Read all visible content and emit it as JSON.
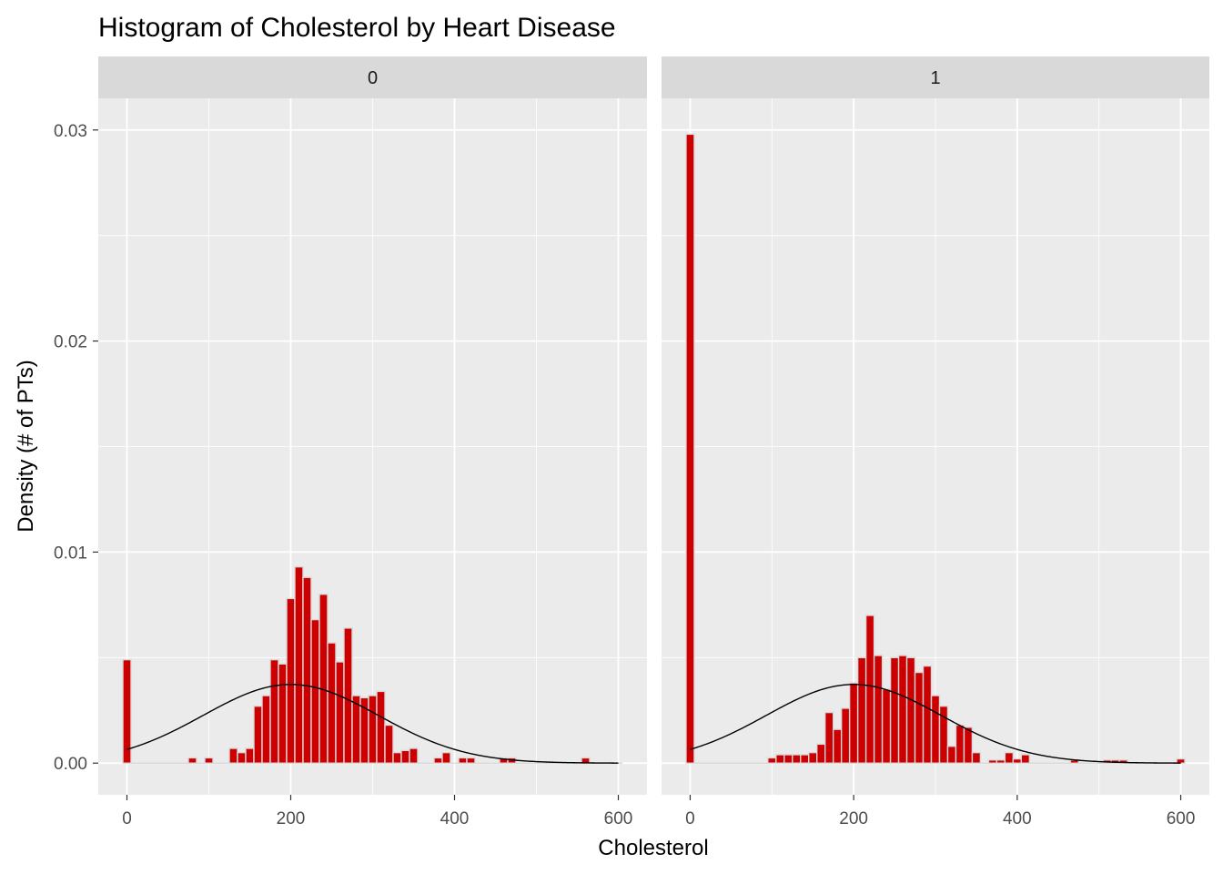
{
  "chart_data": {
    "type": "bar",
    "title": "Histogram of Cholesterol by Heart Disease",
    "xlabel": "Cholesterol",
    "ylabel": "Density (# of PTs)",
    "xlim": [
      -35,
      635
    ],
    "ylim": [
      -0.0015,
      0.0315
    ],
    "x_ticks": [
      0,
      200,
      400,
      600
    ],
    "x_tick_labels": [
      "0",
      "200",
      "400",
      "600"
    ],
    "y_ticks": [
      0,
      0.01,
      0.02,
      0.03
    ],
    "y_tick_labels": [
      "0.00",
      "0.01",
      "0.02",
      "0.03"
    ],
    "grid": true,
    "legend": "none",
    "bin_width": 10,
    "colors": {
      "bar_fill": "#cc0000",
      "bar_outline": "#d9d9d9",
      "curve": "#000000",
      "panel_bg": "#ebebeb",
      "strip_bg": "#d9d9d9",
      "grid": "#ffffff"
    },
    "panels": [
      {
        "label": "0",
        "bins": [
          [
            0,
            0.0049
          ],
          [
            80,
            0.00025
          ],
          [
            100,
            0.00025
          ],
          [
            130,
            0.0007
          ],
          [
            140,
            0.0005
          ],
          [
            150,
            0.0007
          ],
          [
            160,
            0.0027
          ],
          [
            170,
            0.0032
          ],
          [
            180,
            0.0049
          ],
          [
            190,
            0.0047
          ],
          [
            200,
            0.0078
          ],
          [
            210,
            0.0093
          ],
          [
            220,
            0.0088
          ],
          [
            230,
            0.0068
          ],
          [
            240,
            0.008
          ],
          [
            250,
            0.0057
          ],
          [
            260,
            0.0048
          ],
          [
            270,
            0.0064
          ],
          [
            280,
            0.0032
          ],
          [
            290,
            0.0031
          ],
          [
            300,
            0.0032
          ],
          [
            310,
            0.0034
          ],
          [
            320,
            0.0018
          ],
          [
            330,
            0.0005
          ],
          [
            340,
            0.0006
          ],
          [
            350,
            0.0007
          ],
          [
            380,
            0.00025
          ],
          [
            390,
            0.0005
          ],
          [
            410,
            0.00025
          ],
          [
            420,
            0.00025
          ],
          [
            460,
            0.00025
          ],
          [
            470,
            0.00025
          ],
          [
            560,
            0.00025
          ]
        ],
        "normal_fit": {
          "mean": 200,
          "sd": 107
        }
      },
      {
        "label": "1",
        "bins": [
          [
            0,
            0.0298
          ],
          [
            100,
            0.00025
          ],
          [
            110,
            0.0004
          ],
          [
            120,
            0.0004
          ],
          [
            130,
            0.0004
          ],
          [
            140,
            0.0004
          ],
          [
            150,
            0.0005
          ],
          [
            160,
            0.0009
          ],
          [
            170,
            0.0024
          ],
          [
            180,
            0.0016
          ],
          [
            190,
            0.0026
          ],
          [
            200,
            0.0038
          ],
          [
            210,
            0.005
          ],
          [
            220,
            0.007
          ],
          [
            230,
            0.0051
          ],
          [
            240,
            0.0035
          ],
          [
            250,
            0.005
          ],
          [
            260,
            0.0051
          ],
          [
            270,
            0.005
          ],
          [
            280,
            0.0043
          ],
          [
            290,
            0.0046
          ],
          [
            300,
            0.0032
          ],
          [
            310,
            0.0027
          ],
          [
            320,
            0.0008
          ],
          [
            330,
            0.0018
          ],
          [
            340,
            0.0017
          ],
          [
            350,
            0.0005
          ],
          [
            370,
            0.00015
          ],
          [
            380,
            0.00015
          ],
          [
            390,
            0.0005
          ],
          [
            400,
            0.0002
          ],
          [
            410,
            0.0004
          ],
          [
            470,
            0.00015
          ],
          [
            510,
            0.00015
          ],
          [
            520,
            0.00015
          ],
          [
            530,
            0.00015
          ],
          [
            600,
            0.0002
          ]
        ],
        "normal_fit": {
          "mean": 200,
          "sd": 107
        }
      }
    ]
  }
}
